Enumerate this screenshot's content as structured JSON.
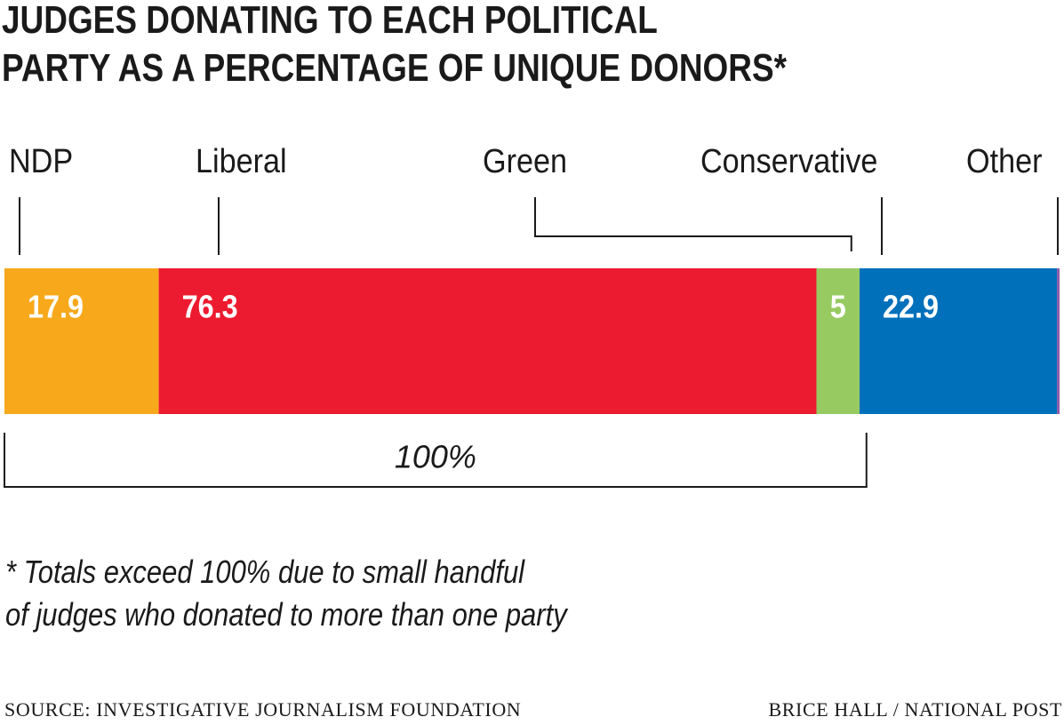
{
  "chart_data": {
    "type": "stacked-bar",
    "orientation": "horizontal",
    "title": "JUDGES DONATING TO EACH POLITICAL\nPARTY AS A PERCENTAGE OF UNIQUE DONORS*",
    "series": [
      {
        "name": "NDP",
        "color": "#f7a81b",
        "values": [
          17.9
        ]
      },
      {
        "name": "Liberal",
        "color": "#ed1b2f",
        "values": [
          76.3
        ]
      },
      {
        "name": "Green",
        "color": "#97cb62",
        "values": [
          5
        ]
      },
      {
        "name": "Conservative",
        "color": "#0070bb",
        "values": [
          22.9
        ]
      },
      {
        "name": "Other",
        "color": "#8e5ba8",
        "values": [
          0.3
        ]
      }
    ],
    "bracket": {
      "value": 100,
      "label": "100%"
    },
    "footnote": "* Totals exceed 100% due to small handful\nof judges who donated to more than one party",
    "source": "SOURCE: INVESTIGATIVE JOURNALISM FOUNDATION",
    "credit": "BRICE HALL / NATIONAL POST"
  }
}
